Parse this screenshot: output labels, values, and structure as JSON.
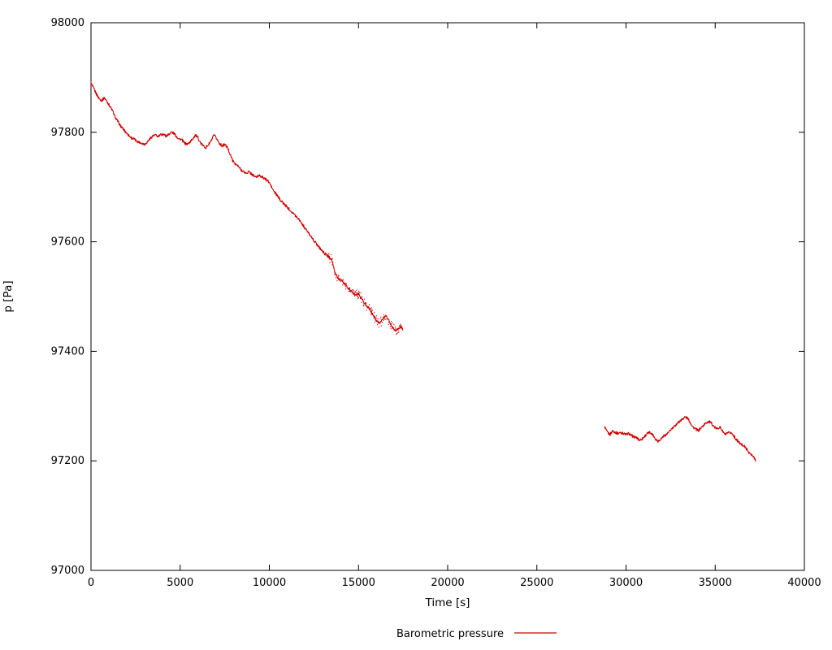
{
  "chart_data": {
    "type": "scatter",
    "title": "",
    "xlabel": "Time [s]",
    "ylabel": "p [Pa]",
    "xlim": [
      0,
      40000
    ],
    "ylim": [
      97000,
      98000
    ],
    "xticks": [
      0,
      5000,
      10000,
      15000,
      20000,
      25000,
      30000,
      35000,
      40000
    ],
    "yticks": [
      97000,
      97200,
      97400,
      97600,
      97800,
      98000
    ],
    "grid": false,
    "legend": {
      "label": "Barometric pressure",
      "position": "bottom-center"
    },
    "noise": {
      "base_amp_pa": 2.4,
      "regions": [
        {
          "from": 13200,
          "to": 17500,
          "amp": 9
        }
      ]
    },
    "series": [
      {
        "name": "Barometric pressure",
        "color": "#d40000",
        "segments": [
          [
            [
              0,
              97890
            ],
            [
              150,
              97880
            ],
            [
              300,
              97870
            ],
            [
              450,
              97862
            ],
            [
              600,
              97858
            ],
            [
              750,
              97863
            ],
            [
              900,
              97856
            ],
            [
              1050,
              97848
            ],
            [
              1200,
              97840
            ],
            [
              1350,
              97828
            ],
            [
              1500,
              97820
            ],
            [
              1650,
              97812
            ],
            [
              1800,
              97806
            ],
            [
              1950,
              97800
            ],
            [
              2100,
              97795
            ],
            [
              2250,
              97790
            ],
            [
              2400,
              97788
            ],
            [
              2550,
              97784
            ],
            [
              2700,
              97782
            ],
            [
              2850,
              97780
            ],
            [
              3000,
              97778
            ],
            [
              3150,
              97782
            ],
            [
              3300,
              97788
            ],
            [
              3450,
              97793
            ],
            [
              3600,
              97795
            ],
            [
              3750,
              97792
            ],
            [
              3900,
              97795
            ],
            [
              4050,
              97797
            ],
            [
              4200,
              97793
            ],
            [
              4350,
              97796
            ],
            [
              4500,
              97800
            ],
            [
              4650,
              97798
            ],
            [
              4800,
              97792
            ],
            [
              4950,
              97788
            ],
            [
              5100,
              97786
            ],
            [
              5250,
              97780
            ],
            [
              5400,
              97778
            ],
            [
              5550,
              97782
            ],
            [
              5700,
              97788
            ],
            [
              5850,
              97795
            ],
            [
              6000,
              97790
            ],
            [
              6150,
              97780
            ],
            [
              6300,
              97775
            ],
            [
              6450,
              97772
            ],
            [
              6600,
              97778
            ],
            [
              6750,
              97785
            ],
            [
              6900,
              97795
            ],
            [
              7050,
              97788
            ],
            [
              7200,
              97780
            ],
            [
              7350,
              97775
            ],
            [
              7500,
              97778
            ],
            [
              7650,
              97772
            ],
            [
              7800,
              97760
            ],
            [
              7950,
              97748
            ],
            [
              8100,
              97742
            ],
            [
              8250,
              97738
            ],
            [
              8400,
              97732
            ],
            [
              8550,
              97728
            ],
            [
              8700,
              97725
            ],
            [
              8850,
              97728
            ],
            [
              9000,
              97724
            ],
            [
              9150,
              97720
            ],
            [
              9300,
              97718
            ],
            [
              9450,
              97722
            ],
            [
              9600,
              97718
            ],
            [
              9750,
              97715
            ],
            [
              9900,
              97712
            ],
            [
              10050,
              97705
            ],
            [
              10200,
              97695
            ],
            [
              10350,
              97688
            ],
            [
              10500,
              97682
            ],
            [
              10650,
              97675
            ],
            [
              10800,
              97670
            ],
            [
              10950,
              97665
            ],
            [
              11100,
              97660
            ],
            [
              11250,
              97655
            ],
            [
              11400,
              97650
            ],
            [
              11550,
              97645
            ],
            [
              11700,
              97640
            ],
            [
              11850,
              97632
            ],
            [
              12000,
              97625
            ],
            [
              12150,
              97618
            ],
            [
              12300,
              97612
            ],
            [
              12450,
              97604
            ],
            [
              12600,
              97598
            ],
            [
              12750,
              97592
            ],
            [
              12900,
              97586
            ],
            [
              13050,
              97580
            ],
            [
              13200,
              97576
            ],
            [
              13350,
              97572
            ],
            [
              13500,
              97568
            ],
            [
              13650,
              97546
            ],
            [
              13800,
              97536
            ],
            [
              13950,
              97530
            ],
            [
              14100,
              97528
            ],
            [
              14250,
              97522
            ],
            [
              14400,
              97516
            ],
            [
              14550,
              97510
            ],
            [
              14700,
              97506
            ],
            [
              14850,
              97503
            ],
            [
              15000,
              97505
            ],
            [
              15150,
              97498
            ],
            [
              15300,
              97490
            ],
            [
              15450,
              97483
            ],
            [
              15600,
              97478
            ],
            [
              15750,
              97470
            ],
            [
              15900,
              97462
            ],
            [
              16050,
              97455
            ],
            [
              16200,
              97452
            ],
            [
              16350,
              97458
            ],
            [
              16500,
              97466
            ],
            [
              16650,
              97460
            ],
            [
              16800,
              97450
            ],
            [
              16950,
              97442
            ],
            [
              17100,
              97438
            ],
            [
              17250,
              97442
            ],
            [
              17400,
              97446
            ],
            [
              17500,
              97438
            ]
          ],
          [
            [
              28800,
              97262
            ],
            [
              28950,
              97252
            ],
            [
              29100,
              97248
            ],
            [
              29250,
              97255
            ],
            [
              29400,
              97252
            ],
            [
              29550,
              97250
            ],
            [
              29700,
              97252
            ],
            [
              29850,
              97250
            ],
            [
              30000,
              97248
            ],
            [
              30150,
              97250
            ],
            [
              30300,
              97246
            ],
            [
              30450,
              97244
            ],
            [
              30600,
              97242
            ],
            [
              30750,
              97238
            ],
            [
              30900,
              97240
            ],
            [
              31050,
              97245
            ],
            [
              31200,
              97250
            ],
            [
              31350,
              97252
            ],
            [
              31500,
              97248
            ],
            [
              31650,
              97240
            ],
            [
              31800,
              97236
            ],
            [
              31950,
              97240
            ],
            [
              32100,
              97245
            ],
            [
              32250,
              97248
            ],
            [
              32400,
              97252
            ],
            [
              32550,
              97258
            ],
            [
              32700,
              97262
            ],
            [
              32850,
              97268
            ],
            [
              33000,
              97272
            ],
            [
              33150,
              97276
            ],
            [
              33300,
              97280
            ],
            [
              33450,
              97278
            ],
            [
              33600,
              97270
            ],
            [
              33750,
              97262
            ],
            [
              33900,
              97258
            ],
            [
              34050,
              97255
            ],
            [
              34200,
              97260
            ],
            [
              34350,
              97265
            ],
            [
              34500,
              97270
            ],
            [
              34650,
              97272
            ],
            [
              34800,
              97268
            ],
            [
              34950,
              97262
            ],
            [
              35100,
              97258
            ],
            [
              35250,
              97262
            ],
            [
              35400,
              97255
            ],
            [
              35550,
              97248
            ],
            [
              35700,
              97250
            ],
            [
              35850,
              97252
            ],
            [
              36000,
              97248
            ],
            [
              36150,
              97240
            ],
            [
              36300,
              97235
            ],
            [
              36450,
              97230
            ],
            [
              36600,
              97228
            ],
            [
              36750,
              97222
            ],
            [
              36900,
              97215
            ],
            [
              37050,
              97210
            ],
            [
              37200,
              97205
            ],
            [
              37300,
              97200
            ]
          ]
        ]
      }
    ]
  }
}
